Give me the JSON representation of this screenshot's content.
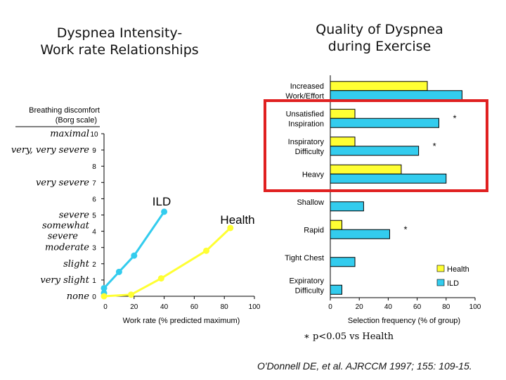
{
  "titles": {
    "left": "Dyspnea Intensity-\nWork rate Relationships",
    "right": "Quality of Dyspnea\nduring Exercise"
  },
  "chart_data": [
    {
      "type": "line",
      "title": "Dyspnea Intensity-Work rate Relationships",
      "xlabel": "Work rate (% predicted maximum)",
      "ylabel": "Breathing discomfort (Borg scale)",
      "xlim": [
        0,
        100
      ],
      "ylim": [
        0,
        10
      ],
      "xticks": [
        0,
        20,
        40,
        60,
        80,
        100
      ],
      "yticks": [
        0,
        1,
        2,
        3,
        4,
        5,
        6,
        7,
        8,
        9,
        10
      ],
      "borg_descriptors": [
        {
          "value": 10,
          "label": "maximal"
        },
        {
          "value": 9,
          "label": "very, very severe"
        },
        {
          "value": 7,
          "label": "very severe"
        },
        {
          "value": 5,
          "label": "severe"
        },
        {
          "value": 4,
          "label": "somewhat severe"
        },
        {
          "value": 3,
          "label": "moderate"
        },
        {
          "value": 2,
          "label": "slight"
        },
        {
          "value": 1,
          "label": "very slight"
        },
        {
          "value": 0,
          "label": "none"
        }
      ],
      "series": [
        {
          "name": "ILD",
          "color": "#33CCEE",
          "x": [
            0,
            0,
            10,
            20,
            40
          ],
          "y": [
            0.2,
            0.5,
            1.5,
            2.5,
            5.2
          ]
        },
        {
          "name": "Health",
          "color": "#FFFF33",
          "x": [
            0,
            18,
            38,
            68,
            84
          ],
          "y": [
            0,
            0.1,
            1.1,
            2.8,
            4.2
          ]
        }
      ]
    },
    {
      "type": "bar",
      "orientation": "horizontal",
      "title": "Quality of Dyspnea during Exercise",
      "xlabel": "Selection frequency (% of group)",
      "xlim": [
        0,
        100
      ],
      "xticks": [
        0,
        20,
        40,
        60,
        80,
        100
      ],
      "categories": [
        "Increased Work/Effort",
        "Unsatisfied Inspiration",
        "Inspiratory Difficulty",
        "Heavy",
        "Shallow",
        "Rapid",
        "Tight Chest",
        "Expiratory Difficulty"
      ],
      "series": [
        {
          "name": "Health",
          "color": "#FFFF33",
          "values": [
            67,
            17,
            17,
            49,
            0,
            8,
            0,
            0
          ]
        },
        {
          "name": "ILD",
          "color": "#33CCEE",
          "values": [
            91,
            75,
            61,
            80,
            23,
            41,
            17,
            8
          ]
        }
      ],
      "significant": [
        "Unsatisfied Inspiration",
        "Inspiratory Difficulty",
        "Rapid"
      ],
      "significance_marker": "*",
      "legend": "bottom-right"
    }
  ],
  "highlight_color": "#E02020",
  "footnote": {
    "star": "∗",
    "text": "p<0.05 vs Health"
  },
  "citation": "O'Donnell DE, et al. AJRCCM 1997; 155: 109-15."
}
